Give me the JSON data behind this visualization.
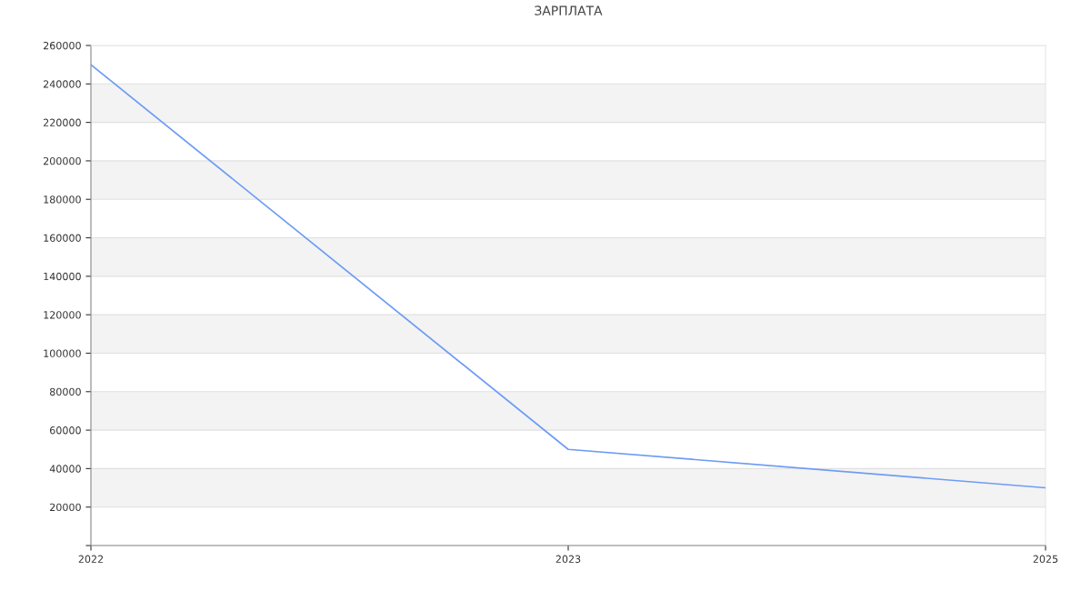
{
  "chart_data": {
    "type": "line",
    "title": "ЗАРПЛАТА",
    "categories": [
      "2022",
      "2023",
      "2025"
    ],
    "series": [
      {
        "color": "#6d9cf5",
        "values": [
          250000,
          50000,
          30000
        ]
      }
    ],
    "ylim": [
      0,
      260000
    ],
    "yticks": [
      {
        "value": 0,
        "label": null
      },
      20000,
      40000,
      60000,
      80000,
      100000,
      120000,
      140000,
      160000,
      180000,
      200000,
      220000,
      240000,
      260000
    ],
    "grid": "y",
    "legend": false,
    "marker": "none",
    "line_style": "solid"
  }
}
